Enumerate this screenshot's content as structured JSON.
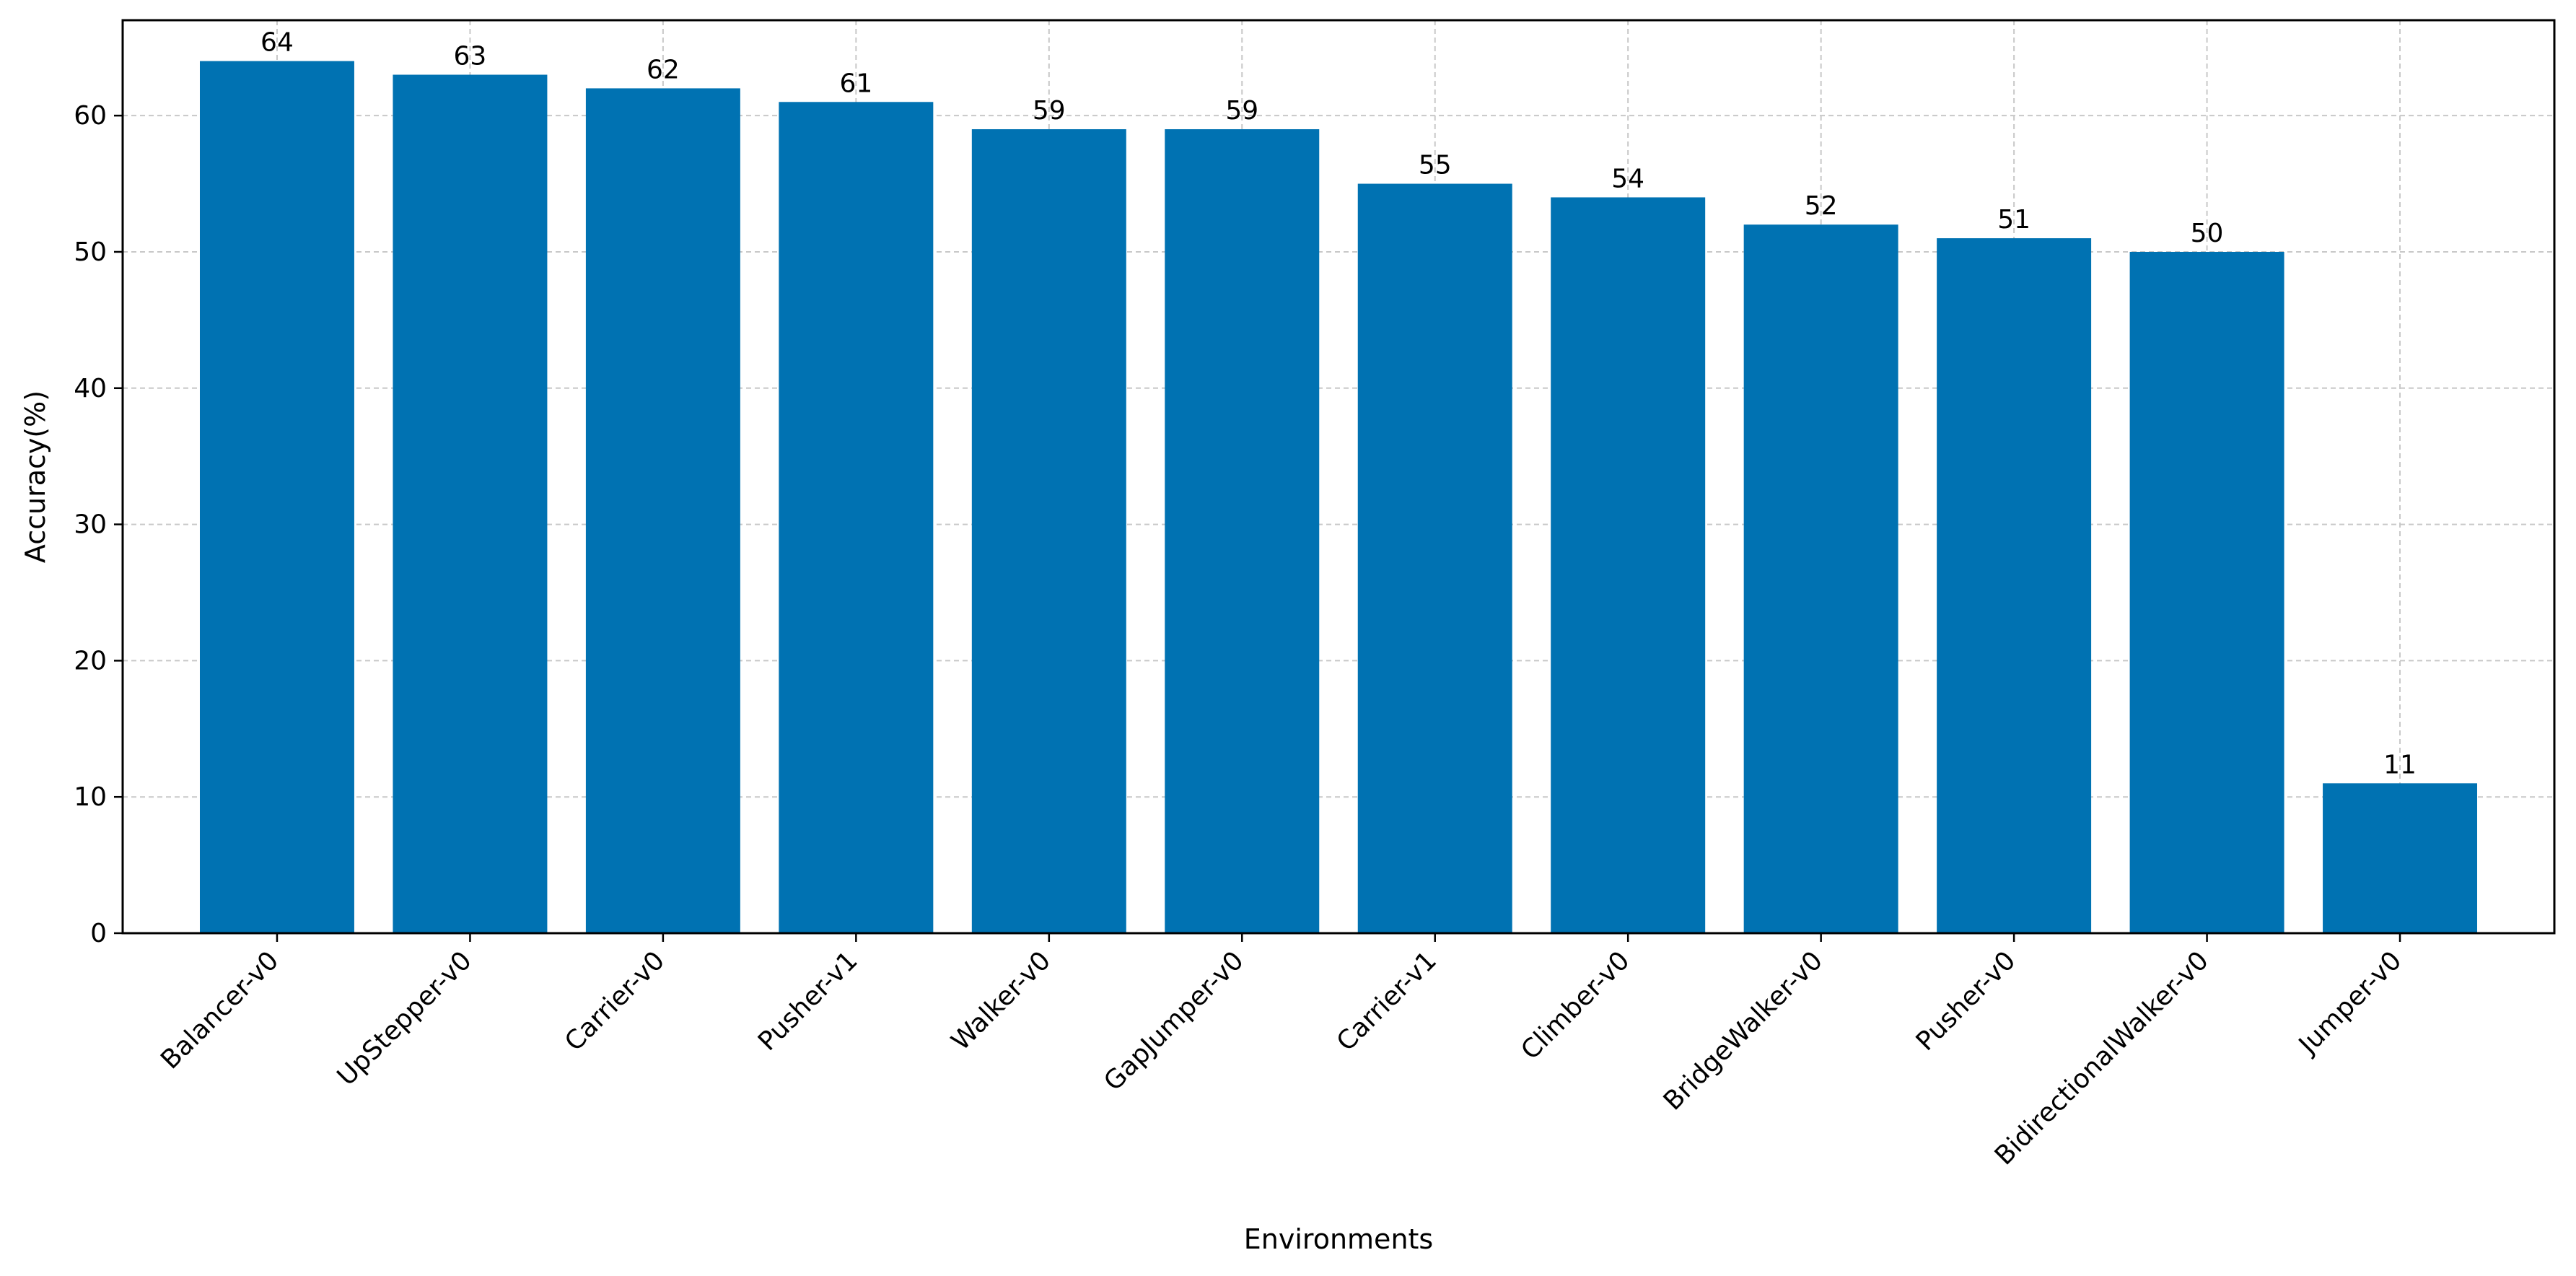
{
  "chart_data": {
    "type": "bar",
    "title": "",
    "xlabel": "Environments",
    "ylabel": "Accuracy(%)",
    "categories": [
      "Balancer-v0",
      "UpStepper-v0",
      "Carrier-v0",
      "Pusher-v1",
      "Walker-v0",
      "GapJumper-v0",
      "Carrier-v1",
      "Climber-v0",
      "BridgeWalker-v0",
      "Pusher-v0",
      "BidirectionalWalker-v0",
      "Jumper-v0"
    ],
    "values": [
      64,
      63,
      62,
      61,
      59,
      59,
      55,
      54,
      52,
      51,
      50,
      11
    ],
    "ylim": [
      0,
      67
    ],
    "yticks": [
      0,
      10,
      20,
      30,
      40,
      50,
      60
    ],
    "grid": true,
    "bar_color": "#0072b2",
    "grid_color": "#c8c8c8"
  }
}
